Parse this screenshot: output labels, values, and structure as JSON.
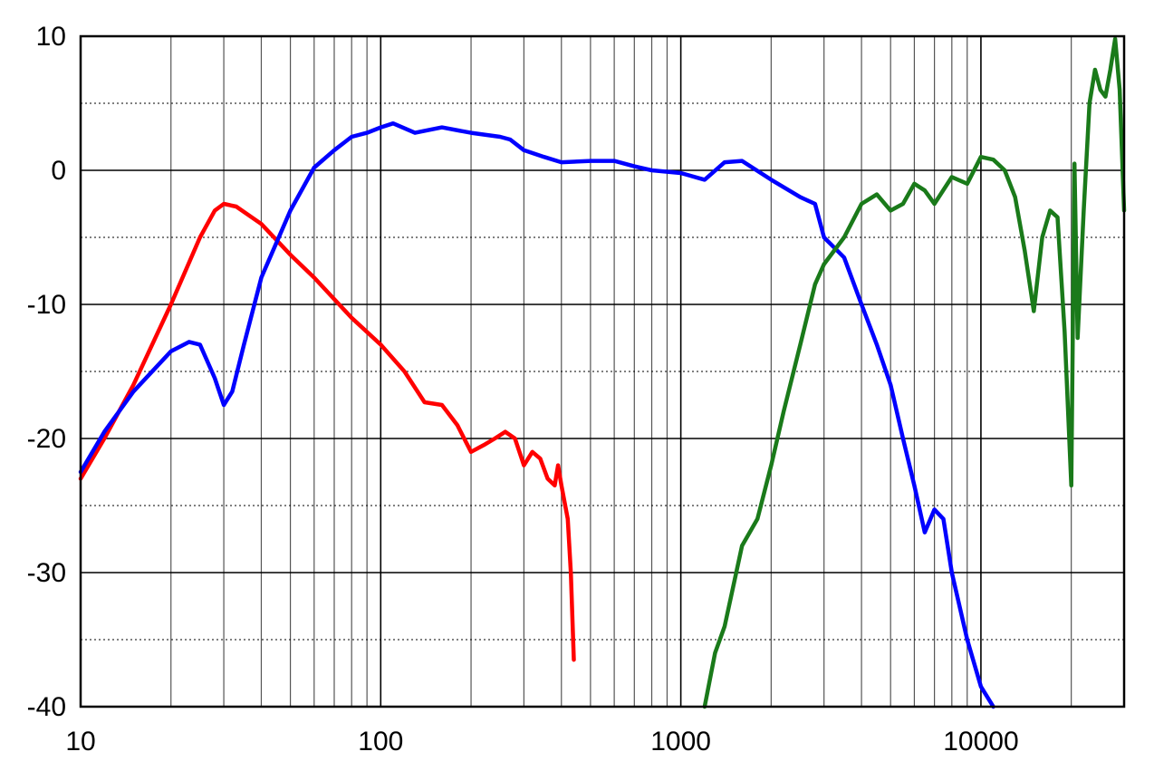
{
  "chart_data": {
    "type": "line",
    "title": "",
    "xlabel": "",
    "ylabel": "",
    "xscale": "log",
    "xlim": [
      10,
      30000
    ],
    "ylim": [
      -40,
      10
    ],
    "grid": true,
    "x_tick_labels": [
      "10",
      "100",
      "1000",
      "10000"
    ],
    "x_tick_values": [
      10,
      100,
      1000,
      10000
    ],
    "y_tick_labels": [
      "10",
      "0",
      "-10",
      "-20",
      "-30",
      "-40"
    ],
    "y_tick_values": [
      10,
      0,
      -10,
      -20,
      -30,
      -40
    ],
    "series": [
      {
        "color": "#ff0000",
        "points": [
          [
            10,
            -23
          ],
          [
            12,
            -20
          ],
          [
            15,
            -16
          ],
          [
            20,
            -10
          ],
          [
            25,
            -5
          ],
          [
            28,
            -3
          ],
          [
            30,
            -2.5
          ],
          [
            33,
            -2.7
          ],
          [
            40,
            -4
          ],
          [
            50,
            -6.3
          ],
          [
            60,
            -8
          ],
          [
            80,
            -11
          ],
          [
            100,
            -13
          ],
          [
            120,
            -15
          ],
          [
            140,
            -17.3
          ],
          [
            160,
            -17.5
          ],
          [
            180,
            -19
          ],
          [
            200,
            -21
          ],
          [
            220,
            -20.5
          ],
          [
            240,
            -20
          ],
          [
            260,
            -19.5
          ],
          [
            280,
            -20
          ],
          [
            300,
            -22
          ],
          [
            320,
            -21
          ],
          [
            340,
            -21.5
          ],
          [
            360,
            -23
          ],
          [
            380,
            -23.5
          ],
          [
            390,
            -22
          ],
          [
            400,
            -23.5
          ],
          [
            420,
            -26
          ],
          [
            430,
            -30
          ],
          [
            440,
            -36.5
          ]
        ]
      },
      {
        "color": "#0000ff",
        "points": [
          [
            10,
            -22.5
          ],
          [
            12,
            -19.5
          ],
          [
            15,
            -16.5
          ],
          [
            20,
            -13.5
          ],
          [
            23,
            -12.8
          ],
          [
            25,
            -13
          ],
          [
            28,
            -15.5
          ],
          [
            30,
            -17.5
          ],
          [
            32,
            -16.5
          ],
          [
            35,
            -13
          ],
          [
            40,
            -8
          ],
          [
            50,
            -3
          ],
          [
            60,
            0.2
          ],
          [
            70,
            1.5
          ],
          [
            80,
            2.5
          ],
          [
            90,
            2.8
          ],
          [
            100,
            3.2
          ],
          [
            110,
            3.5
          ],
          [
            130,
            2.8
          ],
          [
            160,
            3.2
          ],
          [
            200,
            2.8
          ],
          [
            250,
            2.5
          ],
          [
            270,
            2.3
          ],
          [
            300,
            1.5
          ],
          [
            350,
            1
          ],
          [
            400,
            0.6
          ],
          [
            500,
            0.7
          ],
          [
            600,
            0.7
          ],
          [
            700,
            0.3
          ],
          [
            800,
            0
          ],
          [
            1000,
            -0.2
          ],
          [
            1200,
            -0.7
          ],
          [
            1400,
            0.6
          ],
          [
            1600,
            0.7
          ],
          [
            2000,
            -0.7
          ],
          [
            2500,
            -2
          ],
          [
            2800,
            -2.5
          ],
          [
            3000,
            -5
          ],
          [
            3500,
            -6.5
          ],
          [
            4000,
            -10
          ],
          [
            4500,
            -13
          ],
          [
            5000,
            -16
          ],
          [
            5500,
            -20
          ],
          [
            6000,
            -23.5
          ],
          [
            6500,
            -27
          ],
          [
            7000,
            -25.3
          ],
          [
            7500,
            -26
          ],
          [
            8000,
            -30
          ],
          [
            9000,
            -35
          ],
          [
            10000,
            -38.5
          ],
          [
            11000,
            -40
          ]
        ]
      },
      {
        "color": "#1a7a1a",
        "points": [
          [
            1200,
            -40
          ],
          [
            1300,
            -36
          ],
          [
            1400,
            -34
          ],
          [
            1600,
            -28
          ],
          [
            1800,
            -26
          ],
          [
            2000,
            -22
          ],
          [
            2200,
            -18
          ],
          [
            2500,
            -13
          ],
          [
            2800,
            -8.5
          ],
          [
            3000,
            -7
          ],
          [
            3500,
            -5
          ],
          [
            4000,
            -2.5
          ],
          [
            4500,
            -1.8
          ],
          [
            5000,
            -3
          ],
          [
            5500,
            -2.5
          ],
          [
            6000,
            -1
          ],
          [
            6500,
            -1.5
          ],
          [
            7000,
            -2.5
          ],
          [
            8000,
            -0.5
          ],
          [
            9000,
            -1
          ],
          [
            10000,
            1
          ],
          [
            11000,
            0.8
          ],
          [
            12000,
            0
          ],
          [
            13000,
            -2
          ],
          [
            14000,
            -6
          ],
          [
            15000,
            -10.5
          ],
          [
            16000,
            -5
          ],
          [
            17000,
            -3
          ],
          [
            18000,
            -3.5
          ],
          [
            19000,
            -12
          ],
          [
            20000,
            -23.5
          ],
          [
            20500,
            0.5
          ],
          [
            21000,
            -12.5
          ],
          [
            22000,
            -3
          ],
          [
            23000,
            5
          ],
          [
            24000,
            7.5
          ],
          [
            25000,
            6
          ],
          [
            26000,
            5.5
          ],
          [
            27000,
            7.5
          ],
          [
            28000,
            9.8
          ],
          [
            29000,
            6
          ],
          [
            30000,
            -3
          ]
        ]
      }
    ]
  }
}
